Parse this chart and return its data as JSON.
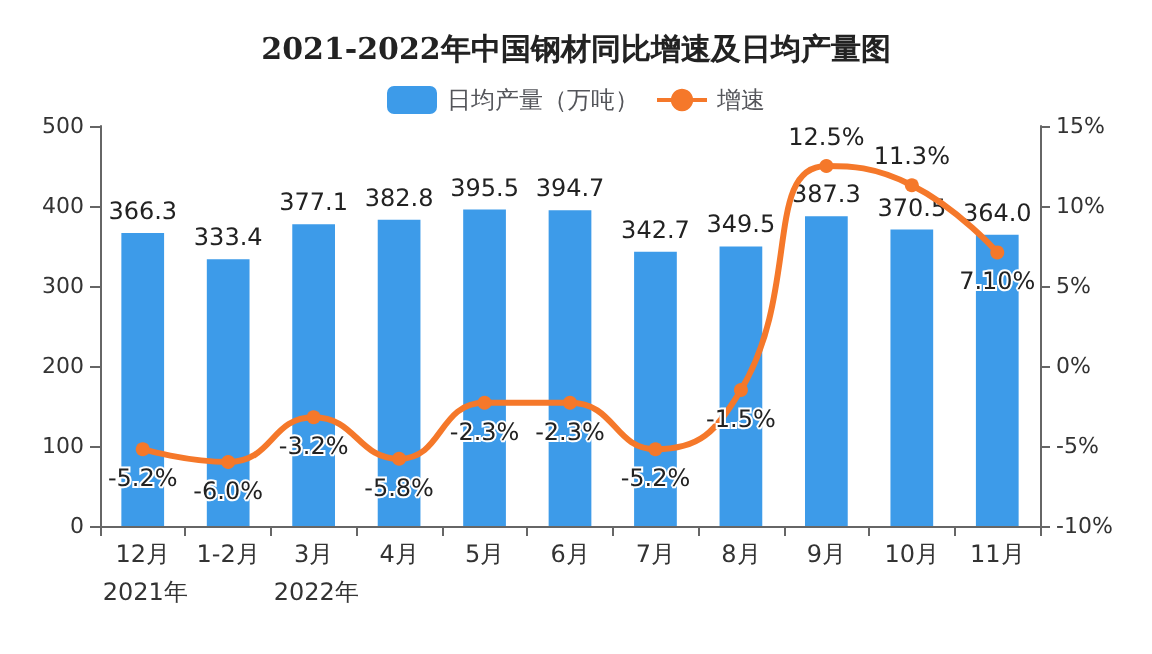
{
  "chart_data": {
    "type": "bar",
    "title": "2021-2022年中国钢材同比增速及日均产量图",
    "categories": [
      "12月",
      "1-2月",
      "3月",
      "4月",
      "5月",
      "6月",
      "7月",
      "8月",
      "9月",
      "10月",
      "11月"
    ],
    "series": [
      {
        "name": "日均产量（万吨）",
        "type": "bar",
        "color": "#3d9be9",
        "values": [
          366.3,
          333.4,
          377.1,
          382.8,
          395.5,
          394.7,
          342.7,
          349.5,
          387.3,
          370.5,
          364.0
        ],
        "value_labels": [
          "366.3",
          "333.4",
          "377.1",
          "382.8",
          "395.5",
          "394.7",
          "342.7",
          "349.5",
          "387.3",
          "370.5",
          "364.0"
        ]
      },
      {
        "name": "增速",
        "type": "line",
        "axis": "y2",
        "color": "#f5782a",
        "marker": "circle",
        "values": [
          -5.2,
          -6.0,
          -3.2,
          -5.8,
          -2.3,
          -2.3,
          -5.2,
          -1.5,
          12.5,
          11.3,
          7.1
        ],
        "value_labels": [
          "-5.2%",
          "-6.0%",
          "-3.2%",
          "-5.8%",
          "-2.3%",
          "-2.3%",
          "-5.2%",
          "-1.5%",
          "12.5%",
          "11.3%",
          "7.10%"
        ]
      }
    ],
    "ylim": [
      0,
      500
    ],
    "yticks": [
      0,
      100,
      200,
      300,
      400,
      500
    ],
    "y2lim": [
      -10,
      15
    ],
    "y2ticks": [
      {
        "value": -10,
        "label": "-10%"
      },
      {
        "value": -5,
        "label": "-5%"
      },
      {
        "value": 0,
        "label": "0%"
      },
      {
        "value": 5,
        "label": "5%"
      },
      {
        "value": 10,
        "label": "10%"
      },
      {
        "value": 15,
        "label": "15%"
      }
    ],
    "annotations": [
      "2021年",
      "2022年"
    ],
    "legend": "top",
    "grid": false
  }
}
